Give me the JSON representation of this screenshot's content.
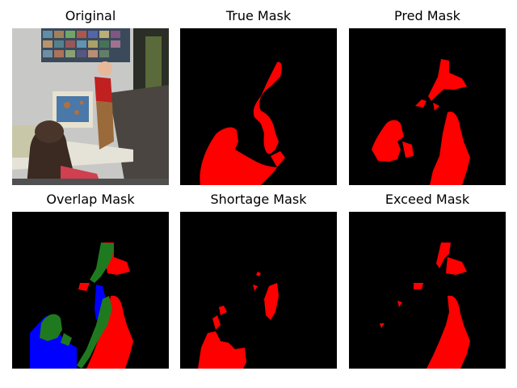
{
  "panels": [
    {
      "title": "Original"
    },
    {
      "title": "True Mask"
    },
    {
      "title": "Pred Mask"
    },
    {
      "title": "Overlap Mask"
    },
    {
      "title": "Shortage Mask"
    },
    {
      "title": "Exceed Mask"
    }
  ],
  "colors": {
    "mask": "#ff0000",
    "overlap_true_positive": "#1f7a1f",
    "overlap_false_negative": "#0000ff",
    "background": "#000000"
  }
}
